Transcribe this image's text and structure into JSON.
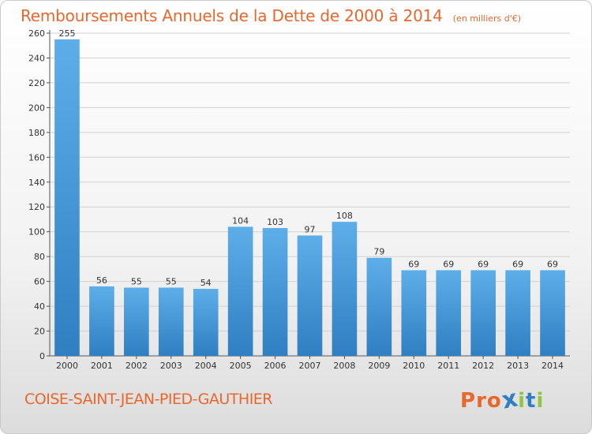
{
  "header": {
    "title": "Remboursements Annuels de la Dette de 2000 à 2014",
    "unit": "(en milliers d'€)"
  },
  "footer": {
    "town": "COISE-SAINT-JEAN-PIED-GAUTHIER",
    "logo": "Proxiti"
  },
  "colors": {
    "accent": "#e8672c",
    "bar_light": "#5daee8",
    "bar_dark": "#2f7fc2",
    "grid": "#d0d0d0",
    "logo_letters": [
      "#e8672c",
      "#e8672c",
      "#e8672c",
      "#2f7fc2",
      "#8dc63f",
      "#2f7fc2",
      "#8dc63f"
    ]
  },
  "chart_data": {
    "type": "bar",
    "title": "Remboursements Annuels de la Dette de 2000 à 2014",
    "xlabel": "",
    "ylabel": "",
    "categories": [
      "2000",
      "2001",
      "2002",
      "2003",
      "2004",
      "2005",
      "2006",
      "2007",
      "2008",
      "2009",
      "2010",
      "2011",
      "2012",
      "2013",
      "2014"
    ],
    "values": [
      255,
      56,
      55,
      55,
      54,
      104,
      103,
      97,
      108,
      79,
      69,
      69,
      69,
      69,
      69
    ],
    "ylim": [
      0,
      260
    ],
    "yticks": [
      0,
      20,
      40,
      60,
      80,
      100,
      120,
      140,
      160,
      180,
      200,
      220,
      240,
      260
    ],
    "grid": true,
    "data_labels": true
  }
}
